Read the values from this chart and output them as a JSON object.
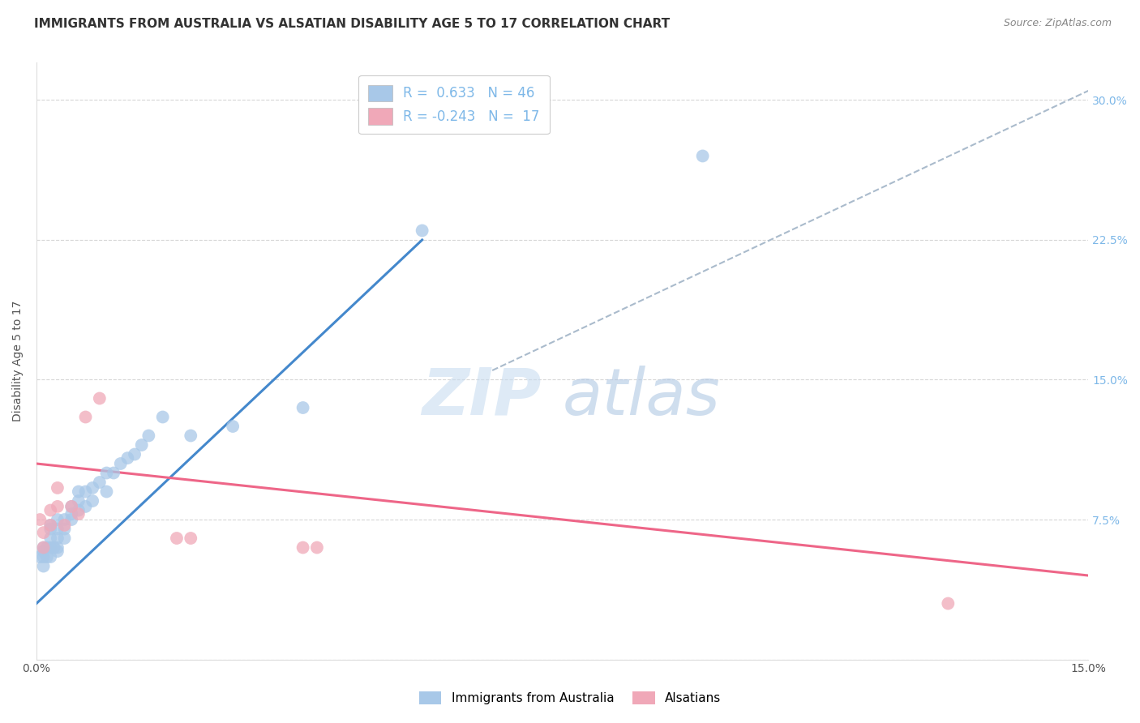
{
  "title": "IMMIGRANTS FROM AUSTRALIA VS ALSATIAN DISABILITY AGE 5 TO 17 CORRELATION CHART",
  "source": "Source: ZipAtlas.com",
  "ylabel": "Disability Age 5 to 17",
  "xlim": [
    0.0,
    0.15
  ],
  "ylim": [
    0.0,
    0.32
  ],
  "blue_r": 0.633,
  "blue_n": 46,
  "pink_r": -0.243,
  "pink_n": 17,
  "blue_color": "#A8C8E8",
  "pink_color": "#F0A8B8",
  "blue_line_color": "#4488CC",
  "pink_line_color": "#EE6688",
  "dashed_line_color": "#AABBCC",
  "watermark_zip": "ZIP",
  "watermark_atlas": "atlas",
  "blue_scatter_x": [
    0.0005,
    0.001,
    0.001,
    0.001,
    0.001,
    0.0015,
    0.0015,
    0.002,
    0.002,
    0.002,
    0.002,
    0.002,
    0.0025,
    0.003,
    0.003,
    0.003,
    0.003,
    0.003,
    0.004,
    0.004,
    0.004,
    0.005,
    0.005,
    0.005,
    0.006,
    0.006,
    0.006,
    0.007,
    0.007,
    0.008,
    0.008,
    0.009,
    0.01,
    0.01,
    0.011,
    0.012,
    0.013,
    0.014,
    0.015,
    0.016,
    0.018,
    0.022,
    0.028,
    0.038,
    0.055,
    0.095
  ],
  "blue_scatter_y": [
    0.055,
    0.05,
    0.055,
    0.058,
    0.06,
    0.055,
    0.06,
    0.055,
    0.06,
    0.065,
    0.07,
    0.072,
    0.06,
    0.058,
    0.06,
    0.065,
    0.07,
    0.075,
    0.065,
    0.07,
    0.075,
    0.075,
    0.078,
    0.082,
    0.08,
    0.085,
    0.09,
    0.082,
    0.09,
    0.085,
    0.092,
    0.095,
    0.09,
    0.1,
    0.1,
    0.105,
    0.108,
    0.11,
    0.115,
    0.12,
    0.13,
    0.12,
    0.125,
    0.135,
    0.23,
    0.27
  ],
  "pink_scatter_x": [
    0.0005,
    0.001,
    0.001,
    0.002,
    0.002,
    0.003,
    0.003,
    0.004,
    0.005,
    0.006,
    0.007,
    0.009,
    0.02,
    0.022,
    0.038,
    0.04,
    0.13
  ],
  "pink_scatter_y": [
    0.075,
    0.06,
    0.068,
    0.072,
    0.08,
    0.082,
    0.092,
    0.072,
    0.082,
    0.078,
    0.13,
    0.14,
    0.065,
    0.065,
    0.06,
    0.06,
    0.03
  ],
  "blue_line_x": [
    0.0,
    0.055
  ],
  "blue_line_y": [
    0.03,
    0.225
  ],
  "pink_line_x": [
    0.0,
    0.15
  ],
  "pink_line_y": [
    0.105,
    0.045
  ],
  "dashed_line_x": [
    0.065,
    0.15
  ],
  "dashed_line_y": [
    0.155,
    0.305
  ],
  "bottom_legend_blue": "Immigrants from Australia",
  "bottom_legend_pink": "Alsatians",
  "grid_color": "#CCCCCC",
  "background_color": "#FFFFFF",
  "title_color": "#333333",
  "legend_text_color": "#7EB8E8",
  "right_tick_color": "#7EB8E8",
  "title_fontsize": 11,
  "axis_label_fontsize": 10,
  "tick_fontsize": 10
}
